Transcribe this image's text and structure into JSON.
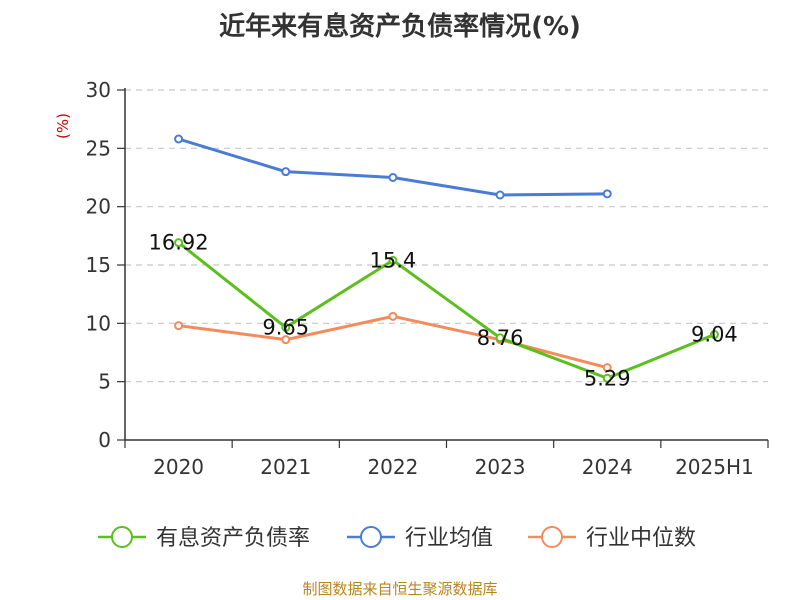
{
  "chart_data": {
    "type": "line",
    "title": "近年来有息资产负债率情况(%)",
    "ylabel": "(%)",
    "xlabel": "",
    "categories": [
      "2020",
      "2021",
      "2022",
      "2023",
      "2024",
      "2025H1"
    ],
    "ylim": [
      0,
      30
    ],
    "yticks": [
      0,
      5,
      10,
      15,
      20,
      25,
      30
    ],
    "grid": true,
    "legend_position": "bottom",
    "series": [
      {
        "name": "有息资产负债率",
        "color": "#5cbf1e",
        "values": [
          16.92,
          9.65,
          15.4,
          8.76,
          5.29,
          9.04
        ],
        "labels": [
          "16.92",
          "9.65",
          "15.4",
          "8.76",
          "5.29",
          "9.04"
        ]
      },
      {
        "name": "行业均值",
        "color": "#4a7bd6",
        "values": [
          25.8,
          23.0,
          22.5,
          21.0,
          21.1,
          null
        ]
      },
      {
        "name": "行业中位数",
        "color": "#f58a5a",
        "values": [
          9.8,
          8.6,
          10.6,
          8.6,
          6.2,
          null
        ]
      }
    ]
  },
  "source": "制图数据来自恒生聚源数据库"
}
